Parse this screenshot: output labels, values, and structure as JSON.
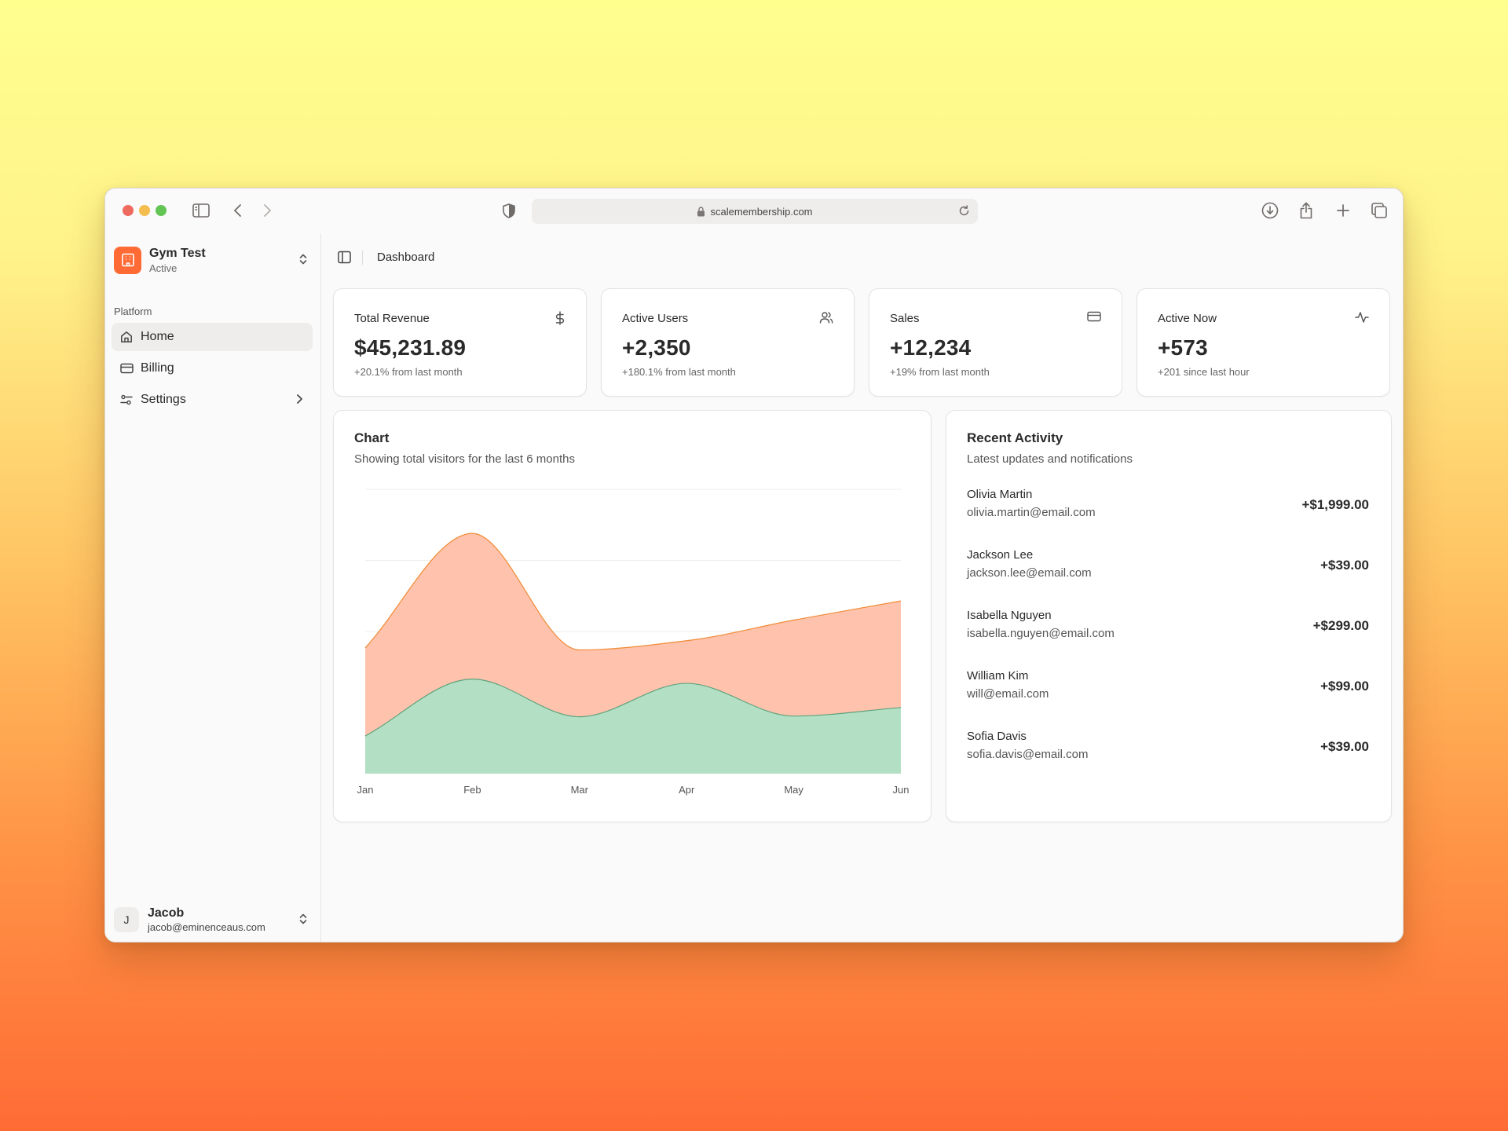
{
  "browser": {
    "url": "scalemembership.com"
  },
  "sidebar": {
    "org": {
      "name": "Gym Test",
      "status": "Active"
    },
    "section_label": "Platform",
    "items": [
      {
        "label": "Home",
        "icon": "home-icon",
        "active": true
      },
      {
        "label": "Billing",
        "icon": "credit-card-icon",
        "active": false
      },
      {
        "label": "Settings",
        "icon": "settings-sliders-icon",
        "active": false
      }
    ],
    "user": {
      "initial": "J",
      "name": "Jacob",
      "email": "jacob@eminenceaus.com"
    }
  },
  "header": {
    "breadcrumb": "Dashboard"
  },
  "stats": [
    {
      "title": "Total Revenue",
      "value": "$45,231.89",
      "sub": "+20.1% from last month",
      "icon": "dollar-icon"
    },
    {
      "title": "Active Users",
      "value": "+2,350",
      "sub": "+180.1% from last month",
      "icon": "users-icon"
    },
    {
      "title": "Sales",
      "value": "+12,234",
      "sub": "+19% from last month",
      "icon": "credit-card-icon"
    },
    {
      "title": "Active Now",
      "value": "+573",
      "sub": "+201 since last hour",
      "icon": "activity-icon"
    }
  ],
  "chart_panel": {
    "title": "Chart",
    "description": "Showing total visitors for the last 6 months"
  },
  "chart_data": {
    "type": "area",
    "stacked": true,
    "smooth": true,
    "x": [
      "Jan",
      "Feb",
      "Mar",
      "Apr",
      "May",
      "Jun"
    ],
    "ylim": [
      0,
      400
    ],
    "grid": true,
    "series": [
      {
        "values": [
          53,
          133,
          80,
          127,
          81,
          93
        ],
        "color": "#b3e0c4",
        "stroke": "#5fa27d"
      },
      {
        "values": [
          124,
          205,
          94,
          60,
          135,
          150
        ],
        "color": "#ffc3ad",
        "stroke": "#f08a34"
      }
    ]
  },
  "activity_panel": {
    "title": "Recent Activity",
    "description": "Latest updates and notifications",
    "items": [
      {
        "name": "Olivia Martin",
        "email": "olivia.martin@email.com",
        "amount": "+$1,999.00"
      },
      {
        "name": "Jackson Lee",
        "email": "jackson.lee@email.com",
        "amount": "+$39.00"
      },
      {
        "name": "Isabella Nguyen",
        "email": "isabella.nguyen@email.com",
        "amount": "+$299.00"
      },
      {
        "name": "William Kim",
        "email": "will@email.com",
        "amount": "+$99.00"
      },
      {
        "name": "Sofia Davis",
        "email": "sofia.davis@email.com",
        "amount": "+$39.00"
      }
    ]
  }
}
